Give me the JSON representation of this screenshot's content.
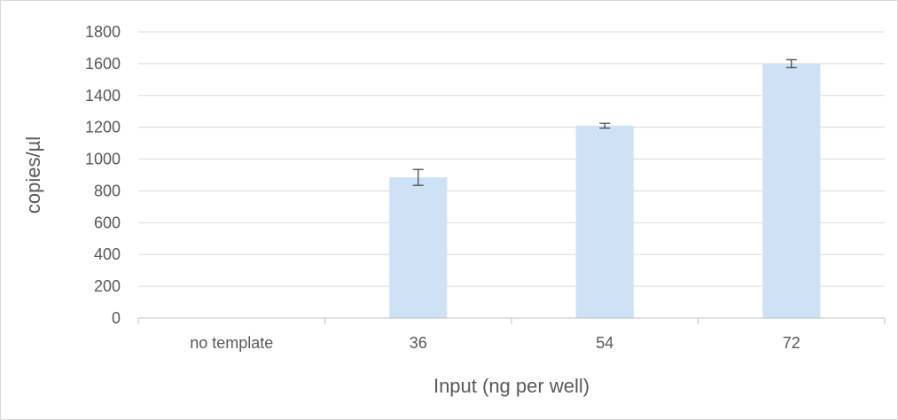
{
  "chart_data": {
    "type": "bar",
    "title": "",
    "xlabel": "Input (ng per well)",
    "ylabel": "copies/µl",
    "categories": [
      "no template",
      "36",
      "54",
      "72"
    ],
    "values": [
      0,
      885,
      1210,
      1600
    ],
    "error": [
      0,
      50,
      15,
      25
    ],
    "ylim": [
      0,
      1800
    ],
    "yticks": [
      0,
      200,
      400,
      600,
      800,
      1000,
      1200,
      1400,
      1600,
      1800
    ],
    "ytick_labels": [
      "0",
      "200",
      "400",
      "600",
      "800",
      "1000",
      "1200",
      "1400",
      "1600",
      "1800"
    ],
    "grid": true,
    "legend": "none",
    "colors": {
      "bar": "#cfe2f5",
      "grid": "#d9d9d9",
      "axis": "#bfbfbf",
      "text": "#595959",
      "errorbar": "#404040"
    }
  }
}
